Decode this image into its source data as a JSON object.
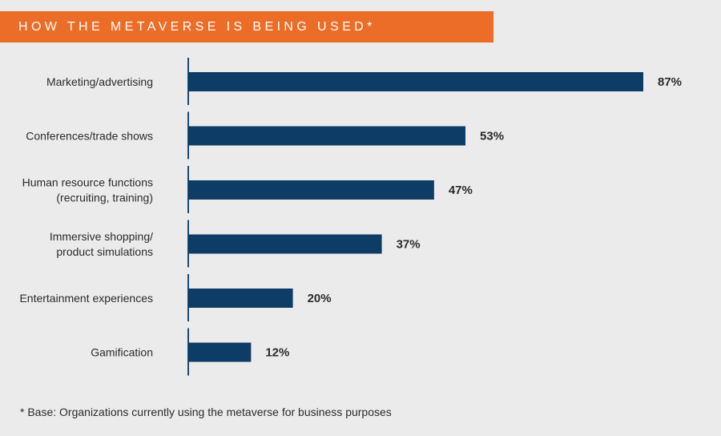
{
  "chart_data": {
    "type": "bar",
    "orientation": "horizontal",
    "title": "HOW THE METAVERSE IS BEING USED*",
    "categories": [
      [
        "Marketing/advertising"
      ],
      [
        "Conferences/trade shows"
      ],
      [
        "Human resource functions",
        "(recruiting, training)"
      ],
      [
        "Immersive shopping/",
        "product simulations"
      ],
      [
        "Entertainment experiences"
      ],
      [
        "Gamification"
      ]
    ],
    "values": [
      87,
      53,
      47,
      37,
      20,
      12
    ],
    "value_labels": [
      "87%",
      "53%",
      "47%",
      "37%",
      "20%",
      "12%"
    ],
    "xlim": [
      0,
      87
    ],
    "grid": false,
    "bar_color": "#0d3d66",
    "banner_color": "#ec6d27",
    "footnote": "* Base: Organizations currently using the metaverse for business purposes"
  }
}
